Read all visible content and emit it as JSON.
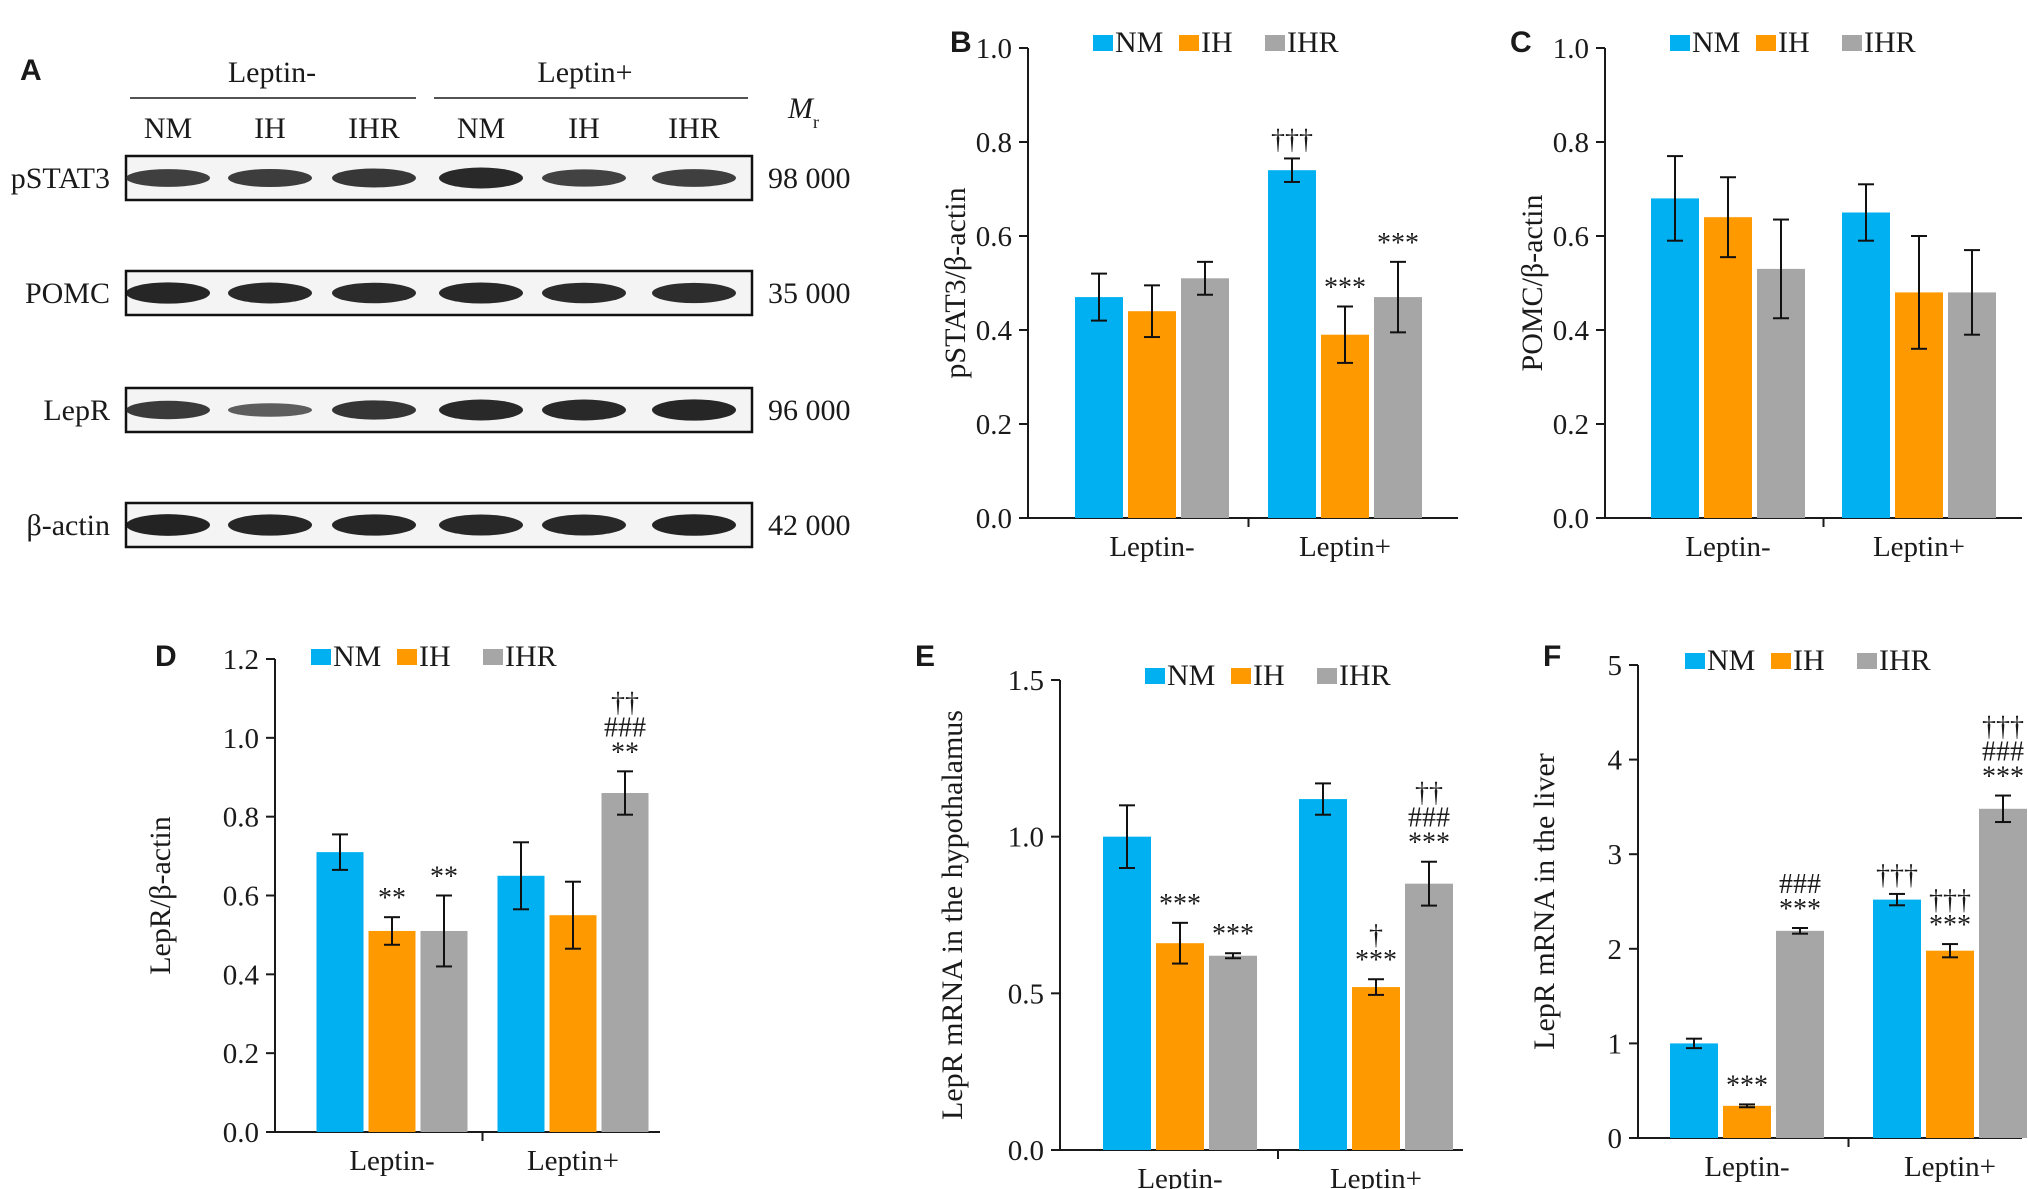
{
  "colors": {
    "NM": "#00b0f0",
    "IH": "#ff9900",
    "IHR": "#a6a6a6",
    "axis": "#1a1a1a"
  },
  "panel_letters": {
    "A": "A",
    "B": "B",
    "C": "C",
    "D": "D",
    "E": "E",
    "F": "F"
  },
  "blot": {
    "groups": [
      "Leptin-",
      "Leptin+"
    ],
    "lanes": [
      "NM",
      "IH",
      "IHR",
      "NM",
      "IH",
      "IHR"
    ],
    "mr_label": "M",
    "mr_sub": "r",
    "rows": [
      {
        "protein": "pSTAT3",
        "mr": "98 000",
        "intensity": [
          0.7,
          0.72,
          0.78,
          0.92,
          0.66,
          0.7
        ]
      },
      {
        "protein": "POMC",
        "mr": "35 000",
        "intensity": [
          0.95,
          0.92,
          0.9,
          0.93,
          0.9,
          0.88
        ]
      },
      {
        "protein": "LepR",
        "mr": "96 000",
        "intensity": [
          0.75,
          0.4,
          0.8,
          0.92,
          0.92,
          0.95
        ]
      },
      {
        "protein": "β-actin",
        "mr": "42 000",
        "intensity": [
          0.98,
          0.95,
          0.95,
          0.93,
          0.93,
          0.97
        ]
      }
    ]
  },
  "chart_data": [
    {
      "panel": "B",
      "type": "bar",
      "categories": [
        "Leptin-",
        "Leptin+"
      ],
      "series": [
        {
          "name": "NM",
          "values": [
            0.47,
            0.74
          ],
          "errors": [
            0.05,
            0.025
          ]
        },
        {
          "name": "IH",
          "values": [
            0.44,
            0.39
          ],
          "errors": [
            0.055,
            0.06
          ]
        },
        {
          "name": "IHR",
          "values": [
            0.51,
            0.47
          ],
          "errors": [
            0.035,
            0.075
          ]
        }
      ],
      "annotations": [
        {
          "category": 1,
          "series": 0,
          "lines": [
            "†††"
          ]
        },
        {
          "category": 1,
          "series": 1,
          "lines": [
            "***"
          ]
        },
        {
          "category": 1,
          "series": 2,
          "lines": [
            "***"
          ]
        }
      ],
      "ylabel": "pSTAT3/β-actin",
      "ylim": [
        0,
        1.0
      ],
      "yticks": [
        "0.0",
        "0.2",
        "0.4",
        "0.6",
        "0.8",
        "1.0"
      ],
      "legend_position": "top",
      "grid": false
    },
    {
      "panel": "C",
      "type": "bar",
      "categories": [
        "Leptin-",
        "Leptin+"
      ],
      "series": [
        {
          "name": "NM",
          "values": [
            0.68,
            0.65
          ],
          "errors": [
            0.09,
            0.06
          ]
        },
        {
          "name": "IH",
          "values": [
            0.64,
            0.48
          ],
          "errors": [
            0.085,
            0.12
          ]
        },
        {
          "name": "IHR",
          "values": [
            0.53,
            0.48
          ],
          "errors": [
            0.105,
            0.09
          ]
        }
      ],
      "annotations": [],
      "ylabel": "POMC/β-actin",
      "ylim": [
        0,
        1.0
      ],
      "yticks": [
        "0.0",
        "0.2",
        "0.4",
        "0.6",
        "0.8",
        "1.0"
      ],
      "legend_position": "top",
      "grid": false
    },
    {
      "panel": "D",
      "type": "bar",
      "categories": [
        "Leptin-",
        "Leptin+"
      ],
      "series": [
        {
          "name": "NM",
          "values": [
            0.71,
            0.65
          ],
          "errors": [
            0.045,
            0.085
          ]
        },
        {
          "name": "IH",
          "values": [
            0.51,
            0.55
          ],
          "errors": [
            0.035,
            0.085
          ]
        },
        {
          "name": "IHR",
          "values": [
            0.51,
            0.86
          ],
          "errors": [
            0.09,
            0.055
          ]
        }
      ],
      "annotations": [
        {
          "category": 0,
          "series": 1,
          "lines": [
            "**"
          ]
        },
        {
          "category": 0,
          "series": 2,
          "lines": [
            "**"
          ]
        },
        {
          "category": 1,
          "series": 2,
          "lines": [
            "††",
            "###",
            "**"
          ]
        }
      ],
      "ylabel": "LepR/β-actin",
      "ylim": [
        0,
        1.2
      ],
      "yticks": [
        "0.0",
        "0.2",
        "0.4",
        "0.6",
        "0.8",
        "1.0",
        "1.2"
      ],
      "legend_position": "top",
      "grid": false
    },
    {
      "panel": "E",
      "type": "bar",
      "categories": [
        "Leptin-",
        "Leptin+"
      ],
      "series": [
        {
          "name": "NM",
          "values": [
            1.0,
            1.12
          ],
          "errors": [
            0.1,
            0.05
          ]
        },
        {
          "name": "IH",
          "values": [
            0.66,
            0.52
          ],
          "errors": [
            0.065,
            0.025
          ]
        },
        {
          "name": "IHR",
          "values": [
            0.62,
            0.85
          ],
          "errors": [
            0.008,
            0.07
          ]
        }
      ],
      "annotations": [
        {
          "category": 0,
          "series": 1,
          "lines": [
            "***"
          ]
        },
        {
          "category": 0,
          "series": 2,
          "lines": [
            "***"
          ]
        },
        {
          "category": 1,
          "series": 1,
          "lines": [
            "†",
            "***"
          ]
        },
        {
          "category": 1,
          "series": 2,
          "lines": [
            "††",
            "###",
            "***"
          ]
        }
      ],
      "ylabel": "LepR mRNA in the hypothalamus",
      "ylim": [
        0,
        1.5
      ],
      "yticks": [
        "0.0",
        "0.5",
        "1.0",
        "1.5"
      ],
      "legend_position": "top",
      "grid": false
    },
    {
      "panel": "F",
      "type": "bar",
      "categories": [
        "Leptin-",
        "Leptin+"
      ],
      "series": [
        {
          "name": "NM",
          "values": [
            1.0,
            2.52
          ],
          "errors": [
            0.05,
            0.06
          ]
        },
        {
          "name": "IH",
          "values": [
            0.34,
            1.98
          ],
          "errors": [
            0.015,
            0.07
          ]
        },
        {
          "name": "IHR",
          "values": [
            2.19,
            3.48
          ],
          "errors": [
            0.03,
            0.14
          ]
        }
      ],
      "annotations": [
        {
          "category": 0,
          "series": 1,
          "lines": [
            "***"
          ]
        },
        {
          "category": 0,
          "series": 2,
          "lines": [
            "###",
            "***"
          ]
        },
        {
          "category": 1,
          "series": 0,
          "lines": [
            "†††"
          ]
        },
        {
          "category": 1,
          "series": 1,
          "lines": [
            "†††",
            "***"
          ]
        },
        {
          "category": 1,
          "series": 2,
          "lines": [
            "†††",
            "###",
            "***"
          ]
        }
      ],
      "ylabel": "LepR mRNA in the liver",
      "ylim": [
        0,
        5
      ],
      "yticks": [
        "0",
        "1",
        "2",
        "3",
        "4",
        "5"
      ],
      "legend_position": "top",
      "grid": false
    }
  ]
}
